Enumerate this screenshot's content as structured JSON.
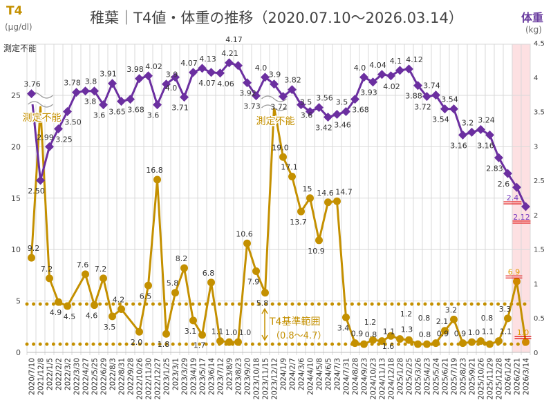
{
  "header": {
    "title": "稚葉｜T4値・体重の推移（2020.07.10〜2026.03.14）",
    "left_axis_title": "T4",
    "left_axis_unit": "(μg/dl)",
    "right_axis_title": "体重",
    "right_axis_unit": "(kg)",
    "left_axis_top_label": "測定不能"
  },
  "chart_data": {
    "type": "line",
    "title": "稚葉｜T4値・体重の推移（2020.07.10〜2026.03.14）",
    "categories": [
      "2020/7/10",
      "2021/12/8",
      "2022/1/5",
      "2022/2/2",
      "2022/3/2",
      "2022/3/30",
      "2022/4/27",
      "2022/5/25",
      "2022/6/29",
      "2022/8/3",
      "2022/8/31",
      "2022/9/28",
      "2022/10/26",
      "2022/11/30",
      "2022/12/27",
      "2023/1/25",
      "2023/3/1",
      "2023/3/29",
      "2023/4/19",
      "2023/5/17",
      "2023/6/14",
      "2023/7/12",
      "2023/8/9",
      "2023/8/23",
      "2023/9/20",
      "2023/10/18",
      "2023/11/15",
      "2023/12/12",
      "2024/1/9",
      "2024/2/7",
      "2024/3/6",
      "2024/4/10",
      "2024/5/8",
      "2024/6/5",
      "2024/7/3",
      "2024/7/31",
      "2024/8/28",
      "2024/9/23",
      "2024/10/23",
      "2024/11/13",
      "2024/12/18",
      "2025/1/28",
      "2025/2/25",
      "2025/3/26",
      "2025/4/23",
      "2025/5/24",
      "2025/6/21",
      "2025/7/19",
      "2025/8/23",
      "2025/9/21",
      "2025/10/26",
      "2025/11/29",
      "2025/12/28",
      "2026/1/24",
      "2026/2/21",
      "2026/3/14"
    ],
    "left_axis": {
      "label": "T4 (μg/dl)",
      "ylim": [
        0,
        30
      ],
      "ticks": [
        "0",
        "5",
        "10",
        "15",
        "20",
        "25"
      ],
      "top_label": "測定不能"
    },
    "right_axis": {
      "label": "体重 (kg)",
      "ylim": [
        0,
        4.5
      ],
      "ticks": [
        "0",
        "0.5",
        "1",
        "1.5",
        "2",
        "2.5",
        "3",
        "3.5",
        "4",
        "4.5"
      ]
    },
    "grid": true,
    "series": [
      {
        "name": "T4",
        "axis": "left",
        "color": "#c49000",
        "marker": "circle",
        "values": [
          9.2,
          null,
          7.2,
          4.9,
          4.5,
          null,
          7.6,
          4.6,
          7.2,
          3.5,
          4.2,
          null,
          2.0,
          6.5,
          16.8,
          1.8,
          5.8,
          8.2,
          3.1,
          1.7,
          6.8,
          1.1,
          1.0,
          1.0,
          10.6,
          7.9,
          5.8,
          null,
          19.0,
          17.1,
          13.7,
          15,
          10.9,
          14.6,
          14.7,
          3.4,
          0.9,
          0.8,
          1.2,
          1.1,
          1.6,
          1.3,
          1.2,
          0.8,
          0.8,
          0.9,
          2.1,
          3.2,
          0.9,
          1.0,
          1.1,
          0.8,
          1.1,
          3.3,
          6.9,
          1.0
        ],
        "labels": [
          "9.2",
          "",
          "7.2",
          "4.9",
          "4.5",
          "",
          "7.6",
          "4.6",
          "7.2",
          "3.5",
          "4.2",
          "",
          "2.0",
          "6.5",
          "16.8",
          "1.8",
          "5.8",
          "8.2",
          "3.1",
          "1.7",
          "6.8",
          "1.1",
          "1.0",
          "1.0",
          "10.6",
          "7.9",
          "5.8",
          "",
          "19.0",
          "17.1",
          "13.7",
          "15",
          "10.9",
          "14.6",
          "14.7",
          "3.4",
          "0.9",
          "0.8",
          "1.2",
          "1.1",
          "1.6",
          "1.3",
          "1.2",
          "0.8",
          "0.8",
          "0.9",
          "2.1",
          "3.2",
          "0.9",
          "1.0",
          "1.1",
          "0.8",
          "1.1",
          "3.3",
          "6.9",
          "1.0"
        ],
        "unmeasurable_indices": [
          1,
          27
        ],
        "unmeasurable_label": "測定不能"
      },
      {
        "name": "体重",
        "axis": "right",
        "color": "#6b2fa0",
        "marker": "diamond",
        "values": [
          3.76,
          2.5,
          2.99,
          3.25,
          3.5,
          3.78,
          3.8,
          3.8,
          3.6,
          3.91,
          3.65,
          3.68,
          3.98,
          4.02,
          3.6,
          3.9,
          4.0,
          3.71,
          4.07,
          4.13,
          4.07,
          4.06,
          4.21,
          4.17,
          3.92,
          3.73,
          4.0,
          3.9,
          3.72,
          3.82,
          3.6,
          3.5,
          3.56,
          3.42,
          3.46,
          3.5,
          3.68,
          4.0,
          3.93,
          4.04,
          4.02,
          4.1,
          4.12,
          3.88,
          3.72,
          3.74,
          3.54,
          3.54,
          3.16,
          3.2,
          3.24,
          3.16,
          2.83,
          2.6,
          2.4,
          2.12
        ],
        "labels": [
          "3.76",
          "2.50",
          "2.99",
          "3.25",
          "3.50",
          "3.78",
          "3.8",
          "3.8",
          "3.6",
          "3.91",
          "3.65",
          "3.68",
          "3.98",
          "4.02",
          "3.6",
          "3.9",
          "4.0",
          "3.71",
          "4.07",
          "4.13",
          "4.07",
          "4.06",
          "4.21",
          "4.17",
          "3.92",
          "3.73",
          "4.0",
          "3.9",
          "3.72",
          "3.82",
          "3.6",
          "3.5",
          "3.56",
          "3.42",
          "3.46",
          "3.5",
          "3.68",
          "4.0",
          "3.93",
          "4.04",
          "4.02",
          "4.1",
          "4.12",
          "3.88",
          "3.72",
          "3.74",
          "3.54",
          "3.54",
          "3.16",
          "3.2",
          "3.24",
          "3.16",
          "2.83",
          "2.6",
          "2.4",
          "2.12"
        ]
      }
    ],
    "reference_range": {
      "label": "T4基準範囲",
      "range_label": "（0.8〜4.7）",
      "low": 0.8,
      "high": 4.7,
      "color": "#c49000"
    },
    "highlight_categories": [
      "2026/2/21",
      "2026/3/14"
    ],
    "highlight_color": "#fde0e2",
    "emphasized_labels": {
      "T4": [
        54,
        55
      ],
      "体重": [
        54,
        55
      ],
      "underline_color": "#e00000"
    }
  }
}
